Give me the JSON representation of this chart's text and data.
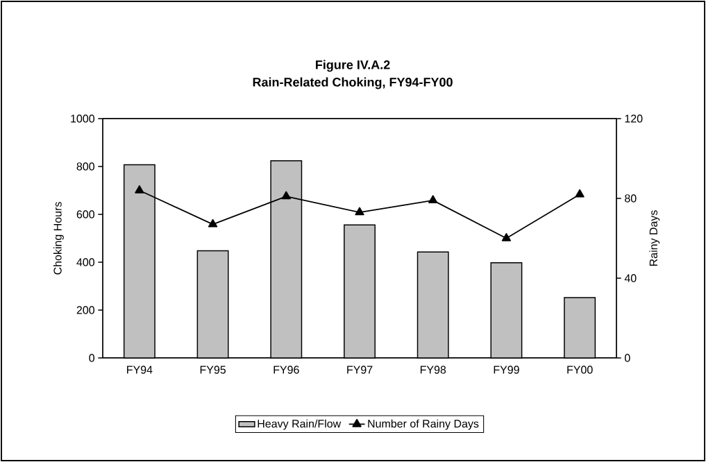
{
  "chart_data": {
    "type": "bar",
    "title": "Figure IV.A.2",
    "subtitle": "Rain-Related Choking, FY94-FY00",
    "ylabel": "Choking Hours",
    "y2label": "Rainy Days",
    "categories": [
      "FY94",
      "FY95",
      "FY96",
      "FY97",
      "FY98",
      "FY99",
      "FY00"
    ],
    "series": [
      {
        "name": "Heavy Rain/Flow",
        "color": "#c0c0c0",
        "values": [
          807,
          448,
          824,
          556,
          443,
          398,
          252
        ]
      },
      {
        "name": "Number of Rainy Days",
        "type": "line",
        "axis": "y2",
        "color": "#000000",
        "values": [
          84,
          67,
          81,
          73,
          79,
          60,
          82
        ]
      }
    ],
    "ylim": [
      0,
      1000
    ],
    "yticks": [
      0,
      200,
      400,
      600,
      800,
      1000
    ],
    "y2lim": [
      0,
      120
    ],
    "y2ticks": [
      0,
      40,
      80,
      120
    ],
    "marker": "triangle",
    "line_style": "solid",
    "legend": "bottom"
  }
}
